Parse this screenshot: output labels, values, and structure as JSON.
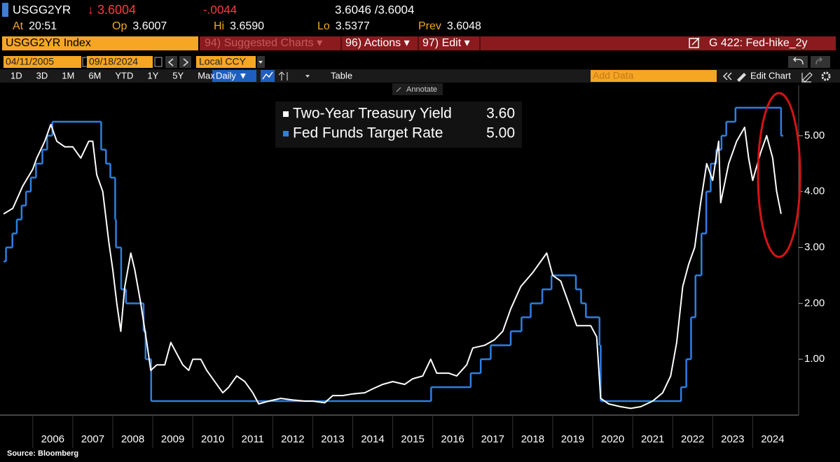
{
  "header": {
    "ticker": "USGG2YR",
    "last": "↓ 3.6004",
    "change": "-.0044",
    "bid_ask": "3.6046 /3.6004",
    "stats": [
      {
        "label": "At",
        "value": "20:51"
      },
      {
        "label": "Op",
        "value": "3.6007"
      },
      {
        "label": "Hi",
        "value": "3.6590"
      },
      {
        "label": "Lo",
        "value": "3.5377"
      },
      {
        "label": "Prev",
        "value": "3.6048"
      }
    ]
  },
  "toolbar": {
    "security": "USGG2YR Index",
    "menus": [
      "94) Suggested Charts ▾",
      "96) Actions ▾",
      "97) Edit ▾"
    ],
    "chart_name": "G 422: Fed-hike_2y"
  },
  "date_bar": {
    "start": "04/11/2005",
    "separator": "-",
    "end": "09/18/2024",
    "currency": "Local CCY"
  },
  "range_bar": {
    "ranges": [
      "1D",
      "3D",
      "1M",
      "6M",
      "YTD",
      "1Y",
      "5Y",
      "Max"
    ],
    "frequency": "Daily ▼",
    "table": "Table",
    "add_data": "Add Data",
    "edit_chart": "Edit Chart"
  },
  "annotate": "Annotate",
  "chart_data": {
    "type": "line",
    "xlim": [
      2005.18,
      2025.15
    ],
    "xticks": [
      2006,
      2007,
      2008,
      2009,
      2010,
      2011,
      2012,
      2013,
      2014,
      2015,
      2016,
      2017,
      2018,
      2019,
      2020,
      2021,
      2022,
      2023,
      2024
    ],
    "ylim": [
      0,
      5.9
    ],
    "yticks": [
      {
        "value": 1,
        "label": "1.00"
      },
      {
        "value": 2,
        "label": "2.00"
      },
      {
        "value": 3,
        "label": "3.00"
      },
      {
        "value": 4,
        "label": "4.00"
      },
      {
        "value": 5,
        "label": "5.00"
      }
    ],
    "series": [
      {
        "name": "Two-Year Treasury Yield",
        "legend_value": "3.60",
        "color": "#ffffff",
        "drawstyle": "default",
        "x": [
          2005.27,
          2005.5,
          2005.75,
          2006.0,
          2006.1,
          2006.3,
          2006.45,
          2006.6,
          2006.8,
          2007.0,
          2007.2,
          2007.4,
          2007.5,
          2007.6,
          2007.75,
          2007.9,
          2008.0,
          2008.1,
          2008.2,
          2008.3,
          2008.45,
          2008.55,
          2008.7,
          2008.85,
          2008.95,
          2009.1,
          2009.3,
          2009.45,
          2009.6,
          2009.75,
          2009.9,
          2010.0,
          2010.2,
          2010.35,
          2010.55,
          2010.75,
          2010.9,
          2011.1,
          2011.3,
          2011.5,
          2011.65,
          2011.9,
          2012.2,
          2012.5,
          2012.8,
          2013.0,
          2013.3,
          2013.5,
          2013.75,
          2014.0,
          2014.3,
          2014.5,
          2014.75,
          2015.0,
          2015.3,
          2015.5,
          2015.75,
          2015.95,
          2016.1,
          2016.4,
          2016.6,
          2016.85,
          2017.0,
          2017.3,
          2017.55,
          2017.75,
          2017.95,
          2018.2,
          2018.5,
          2018.75,
          2018.85,
          2019.0,
          2019.2,
          2019.4,
          2019.6,
          2019.75,
          2019.95,
          2020.1,
          2020.2,
          2020.4,
          2020.7,
          2020.95,
          2021.2,
          2021.5,
          2021.75,
          2021.95,
          2022.1,
          2022.25,
          2022.4,
          2022.55,
          2022.7,
          2022.85,
          2023.0,
          2023.15,
          2023.2,
          2023.4,
          2023.6,
          2023.8,
          2023.9,
          2024.0,
          2024.2,
          2024.35,
          2024.5,
          2024.6,
          2024.71
        ],
        "values": [
          3.6,
          3.7,
          4.1,
          4.4,
          4.6,
          4.9,
          5.2,
          4.9,
          4.8,
          4.8,
          4.6,
          4.9,
          4.9,
          4.3,
          4.0,
          3.1,
          2.6,
          2.0,
          1.5,
          2.3,
          2.9,
          2.6,
          2.0,
          1.3,
          0.8,
          0.9,
          0.9,
          1.3,
          1.1,
          0.9,
          0.8,
          1.0,
          1.0,
          0.8,
          0.6,
          0.4,
          0.5,
          0.7,
          0.6,
          0.4,
          0.2,
          0.25,
          0.3,
          0.27,
          0.25,
          0.25,
          0.22,
          0.35,
          0.35,
          0.38,
          0.4,
          0.47,
          0.55,
          0.6,
          0.55,
          0.65,
          0.7,
          1.0,
          0.75,
          0.75,
          0.7,
          0.9,
          1.2,
          1.25,
          1.35,
          1.5,
          1.9,
          2.3,
          2.55,
          2.8,
          2.9,
          2.5,
          2.4,
          2.0,
          1.6,
          1.6,
          1.6,
          1.4,
          0.3,
          0.2,
          0.15,
          0.12,
          0.15,
          0.25,
          0.4,
          0.7,
          1.3,
          2.3,
          2.7,
          3.0,
          3.8,
          4.5,
          4.2,
          4.9,
          3.8,
          4.5,
          4.9,
          5.15,
          4.6,
          4.2,
          4.7,
          5.0,
          4.6,
          4.0,
          3.6
        ]
      },
      {
        "name": "Fed Funds Target Rate",
        "legend_value": "5.00",
        "color": "#2f7fe0",
        "drawstyle": "steps-post",
        "x": [
          2005.27,
          2005.33,
          2005.49,
          2005.6,
          2005.72,
          2005.83,
          2005.95,
          2006.08,
          2006.24,
          2006.36,
          2006.49,
          2007.71,
          2007.83,
          2007.94,
          2008.06,
          2008.08,
          2008.21,
          2008.33,
          2008.77,
          2008.82,
          2008.96,
          2015.96,
          2016.95,
          2017.2,
          2017.45,
          2017.95,
          2018.22,
          2018.45,
          2018.74,
          2018.97,
          2019.58,
          2019.71,
          2019.83,
          2020.17,
          2020.2,
          2022.21,
          2022.34,
          2022.46,
          2022.57,
          2022.72,
          2022.84,
          2022.95,
          2023.09,
          2023.22,
          2023.34,
          2023.57,
          2024.71
        ],
        "values": [
          2.75,
          3.0,
          3.25,
          3.5,
          3.75,
          4.0,
          4.25,
          4.5,
          4.75,
          5.0,
          5.25,
          4.75,
          4.5,
          4.25,
          3.5,
          3.0,
          2.25,
          2.0,
          1.5,
          1.0,
          0.25,
          0.5,
          0.75,
          1.0,
          1.25,
          1.5,
          1.75,
          2.0,
          2.25,
          2.5,
          2.25,
          2.0,
          1.75,
          1.25,
          0.25,
          0.5,
          1.0,
          1.75,
          2.5,
          3.25,
          4.0,
          4.5,
          4.75,
          5.0,
          5.25,
          5.5,
          5.0
        ]
      }
    ]
  },
  "source": "Source: Bloomberg"
}
